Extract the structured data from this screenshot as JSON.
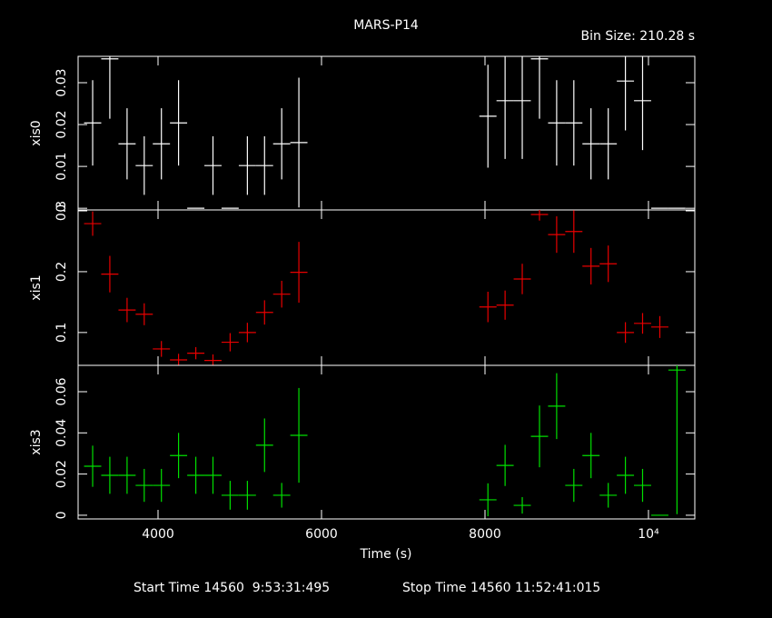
{
  "chart_data": {
    "type": "errorbar",
    "title": "MARS-P14",
    "bin_size": "Bin Size: 210.28 s",
    "xlabel": "Time (s)",
    "start_time": "Start Time 14560  9:53:31:495",
    "stop_time": "Stop Time 14560 11:52:41:015",
    "xlim": [
      3022,
      10567
    ],
    "xticks": [
      4000,
      6000,
      8000,
      {
        "value": 10000,
        "label": "10⁴"
      }
    ],
    "x": [
      3200,
      3410,
      3621,
      3831,
      4041,
      4251,
      4462,
      4672,
      4882,
      5093,
      5303,
      5513,
      5723,
      8036,
      8246,
      8456,
      8667,
      8877,
      9087,
      9297,
      9508,
      9718,
      9928,
      10139,
      10349
    ],
    "xerr": 105.14,
    "panels": [
      {
        "ylabel": "xis0",
        "color": "#ffffff",
        "ylim": [
          -0.0004,
          0.0363
        ],
        "yticks": [
          0,
          0.01,
          0.02,
          0.03
        ],
        "values": [
          0.0204,
          0.0357,
          0.0154,
          0.0102,
          0.0154,
          0.0204,
          0,
          0.0102,
          0,
          0.0102,
          0.0102,
          0.0154,
          0.0157,
          0.022,
          0.0257,
          0.0257,
          0.0357,
          0.0204,
          0.0204,
          0.0154,
          0.0154,
          0.0304,
          0.0257,
          0,
          0
        ],
        "errors": [
          0.0102,
          0.0143,
          0.0085,
          0.007,
          0.0085,
          0.0102,
          0,
          0.007,
          0,
          0.007,
          0.007,
          0.0085,
          0.0155,
          0.0123,
          0.0139,
          0.0139,
          0.0143,
          0.0102,
          0.0102,
          0.0085,
          0.0085,
          0.0118,
          0.0118,
          0,
          0
        ]
      },
      {
        "ylabel": "xis1",
        "color": "#e80000",
        "ylim": [
          0.046,
          0.3015
        ],
        "yticks": [
          0.1,
          0.2,
          0.3
        ],
        "values": [
          0.279,
          0.196,
          0.137,
          0.13,
          0.073,
          0.055,
          0.066,
          0.054,
          0.084,
          0.1,
          0.133,
          0.163,
          0.199,
          0.142,
          0.145,
          0.188,
          0.294,
          0.261,
          0.266,
          0.209,
          0.213,
          0.1,
          0.115,
          0.109,
          null
        ],
        "errors": [
          0.02,
          0.03,
          0.02,
          0.018,
          0.013,
          0.01,
          0.01,
          0.01,
          0.015,
          0.016,
          0.02,
          0.022,
          0.05,
          0.025,
          0.024,
          0.025,
          0.01,
          0.03,
          0.035,
          0.03,
          0.03,
          0.017,
          0.017,
          0.018,
          null
        ]
      },
      {
        "ylabel": "xis3",
        "color": "#00e000",
        "ylim": [
          -0.0018,
          0.0728
        ],
        "yticks": [
          0,
          0.02,
          0.04,
          0.06
        ],
        "values": [
          0.0238,
          0.0194,
          0.0194,
          0.0145,
          0.0145,
          0.029,
          0.0194,
          0.0194,
          0.0097,
          0.0097,
          0.034,
          0.0097,
          0.0388,
          0.0075,
          0.0242,
          0.0048,
          0.0383,
          0.053,
          0.0145,
          0.029,
          0.0097,
          0.0194,
          0.0145,
          0,
          0.0705
        ],
        "errors": [
          0.01,
          0.009,
          0.009,
          0.008,
          0.008,
          0.011,
          0.009,
          0.009,
          0.007,
          0.007,
          0.013,
          0.006,
          0.023,
          0.008,
          0.01,
          0.004,
          0.015,
          0.016,
          0.008,
          0.011,
          0.006,
          0.009,
          0.008,
          0,
          0.07
        ]
      }
    ]
  }
}
